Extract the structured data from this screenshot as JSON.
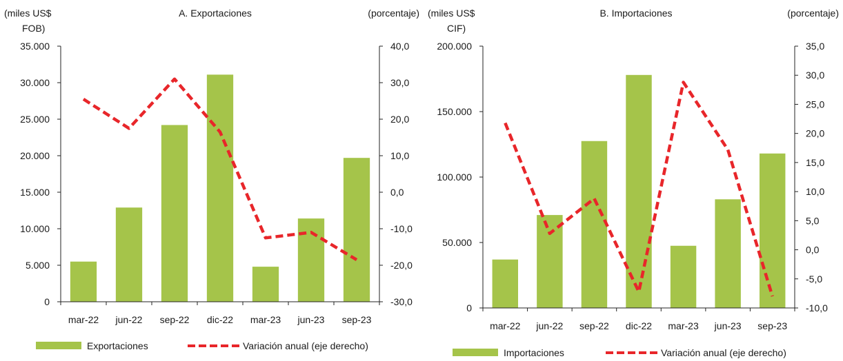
{
  "chart_data": [
    {
      "type": "bar",
      "title": "A. Exportaciones",
      "left_unit": [
        "(miles US$",
        "FOB)"
      ],
      "right_unit": "(porcentaje)",
      "categories": [
        "mar-22",
        "jun-22",
        "sep-22",
        "dic-22",
        "mar-23",
        "jun-23",
        "sep-23"
      ],
      "y_left": {
        "min": 0,
        "max": 35000,
        "step": 5000,
        "ticks": [
          "0",
          "5.000",
          "10.000",
          "15.000",
          "20.000",
          "25.000",
          "30.000",
          "35.000"
        ]
      },
      "y_right": {
        "min": -30,
        "max": 40,
        "step": 10,
        "ticks": [
          "-30,0",
          "-20,0",
          "-10,0",
          "0,0",
          "10,0",
          "20,0",
          "30,0",
          "40,0"
        ]
      },
      "series": [
        {
          "name": "Exportaciones",
          "kind": "bar",
          "axis": "left",
          "color": "#a5c44a",
          "values": [
            5500,
            12900,
            24200,
            31100,
            4800,
            11400,
            19700
          ]
        },
        {
          "name": "Variación anual (eje derecho)",
          "kind": "line",
          "axis": "right",
          "color": "#e8262a",
          "values": [
            25.5,
            17.5,
            31,
            16.5,
            -12.5,
            -11,
            -18.5
          ]
        }
      ],
      "legend": [
        "Exportaciones",
        "Variación anual (eje derecho)"
      ]
    },
    {
      "type": "bar",
      "title": "B. Importaciones",
      "left_unit": [
        "(miles US$",
        "CIF)"
      ],
      "right_unit": "(porcentaje)",
      "categories": [
        "mar-22",
        "jun-22",
        "sep-22",
        "dic-22",
        "mar-23",
        "jun-23",
        "sep-23"
      ],
      "y_left": {
        "min": 0,
        "max": 200000,
        "step": 50000,
        "ticks": [
          "0",
          "50.000",
          "100.000",
          "150.000",
          "200.000"
        ]
      },
      "y_right": {
        "min": -10,
        "max": 35,
        "step": 5,
        "ticks": [
          "-10,0",
          "-5,0",
          "0,0",
          "5,0",
          "10,0",
          "15,0",
          "20,0",
          "25,0",
          "30,0",
          "35,0"
        ]
      },
      "series": [
        {
          "name": "Importaciones",
          "kind": "bar",
          "axis": "left",
          "color": "#a5c44a",
          "values": [
            37000,
            71000,
            127500,
            178000,
            47500,
            83000,
            118000
          ]
        },
        {
          "name": "Variación anual (eje derecho)",
          "kind": "line",
          "axis": "right",
          "color": "#e8262a",
          "values": [
            21.8,
            2.8,
            8.8,
            -7.2,
            28.8,
            17.2,
            -8.0
          ]
        }
      ],
      "legend": [
        "Importaciones",
        "Variación anual (eje derecho)"
      ]
    }
  ]
}
